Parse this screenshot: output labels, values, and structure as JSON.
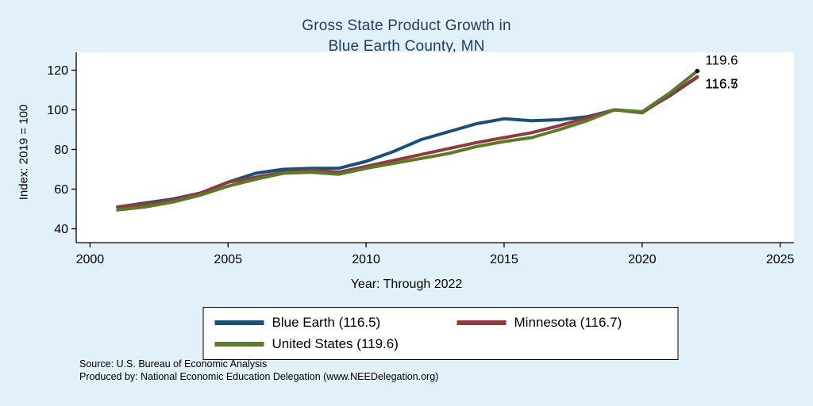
{
  "chart_data": {
    "type": "line",
    "title": "Gross State Product Growth in Blue Earth County, MN",
    "title_lines": [
      "Gross State Product Growth in",
      "Blue Earth County, MN"
    ],
    "xlabel": "Year: Through 2022",
    "ylabel": "Index: 2019 = 100",
    "xlim": [
      1999.5,
      2025.5
    ],
    "ylim": [
      33,
      125
    ],
    "xticks": [
      2000,
      2005,
      2010,
      2015,
      2020,
      2025
    ],
    "yticks": [
      40,
      60,
      80,
      100,
      120
    ],
    "grid": false,
    "legend_position": "bottom-center",
    "x": [
      2001,
      2002,
      2003,
      2004,
      2005,
      2006,
      2007,
      2008,
      2009,
      2010,
      2011,
      2012,
      2013,
      2014,
      2015,
      2016,
      2017,
      2018,
      2019,
      2020,
      2021,
      2022
    ],
    "series": [
      {
        "name": "Blue Earth",
        "legend_label": "Blue Earth  (116.5)",
        "color": "#1a4f76",
        "end_label": "116.5",
        "values": [
          51,
          53,
          55,
          58,
          63.5,
          68,
          70,
          70.5,
          70.5,
          74,
          79,
          85,
          89,
          93,
          95.5,
          94.5,
          95,
          96.5,
          100,
          99,
          107,
          116.5
        ]
      },
      {
        "name": "Minnesota",
        "legend_label": "Minnesota (116.7)",
        "color": "#8f3b3e",
        "end_label": "116.7",
        "values": [
          51,
          52.5,
          54.5,
          58,
          63.5,
          66,
          68.5,
          69.5,
          68.5,
          71.5,
          74.5,
          77.5,
          80.5,
          83.5,
          86,
          88.5,
          92,
          96,
          100,
          98.5,
          107.5,
          116.7
        ]
      },
      {
        "name": "United States",
        "legend_label": "United States (119.6)",
        "color": "#5b7a2a",
        "end_label": "119.6",
        "values": [
          49.5,
          51,
          53.5,
          57,
          61.5,
          65,
          68,
          68.5,
          67.5,
          70.5,
          73,
          75.5,
          78,
          81.5,
          84,
          86,
          90,
          94.5,
          100,
          99,
          108.5,
          119.6
        ]
      }
    ]
  },
  "footer": {
    "source_line1": "Source: U.S. Bureau of Economic Analysis",
    "source_line2": "Produced by: National Economic Education Delegation (www.NEEDelegation.org)"
  },
  "colors": {
    "background": "#e2f0f9",
    "title": "#1f3d66",
    "plot_bg": "#ffffff",
    "axis": "#000000"
  }
}
